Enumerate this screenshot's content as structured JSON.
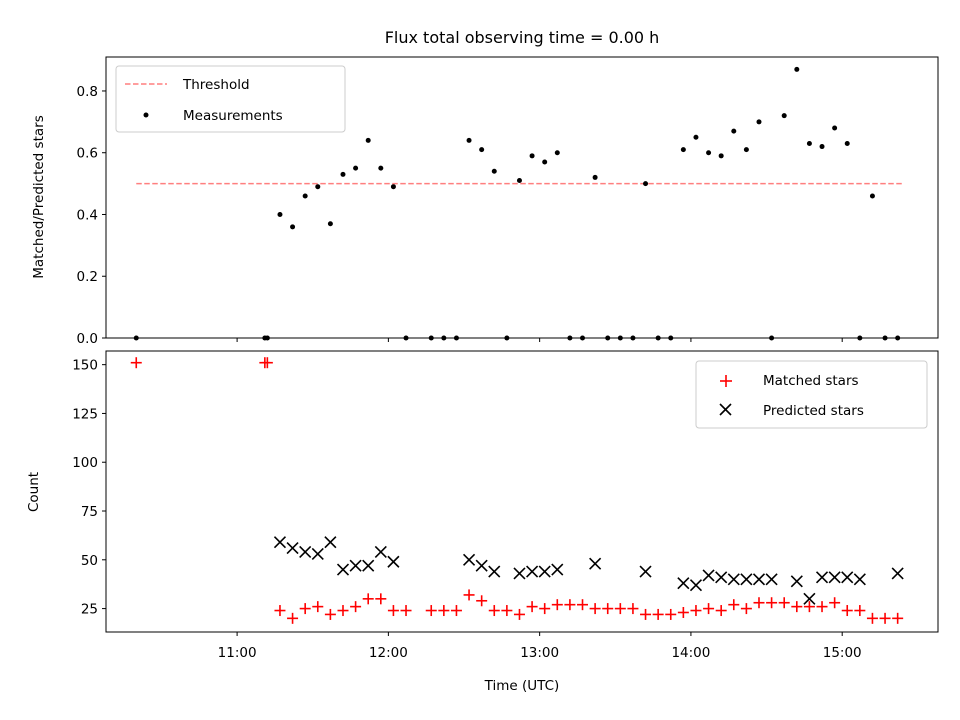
{
  "chart_data": [
    {
      "type": "scatter",
      "title": "Flux total observing time = 0.00 h",
      "xlabel": "",
      "ylabel": "Matched/Predicted stars",
      "xlim": [
        "10:08",
        "15:38"
      ],
      "ylim": [
        0,
        0.91
      ],
      "yticks": [
        0.0,
        0.2,
        0.4,
        0.6,
        0.8
      ],
      "ytick_labels": [
        "0.0",
        "0.2",
        "0.4",
        "0.6",
        "0.8"
      ],
      "grid": false,
      "legend": {
        "placement": "top-left",
        "entries": [
          "Threshold",
          "Measurements"
        ]
      },
      "threshold": {
        "name": "Threshold",
        "value": 0.5,
        "x_start": "10:20",
        "x_end": "15:24",
        "color": "#ff7f7f",
        "style": "dashed"
      },
      "series": [
        {
          "name": "Measurements",
          "color": "#000000",
          "marker": "dot",
          "x": [
            "10:20",
            "11:11",
            "11:12",
            "11:17",
            "11:22",
            "11:27",
            "11:32",
            "11:37",
            "11:42",
            "11:47",
            "11:52",
            "11:57",
            "12:02",
            "12:07",
            "12:17",
            "12:22",
            "12:27",
            "12:32",
            "12:37",
            "12:42",
            "12:47",
            "12:52",
            "12:57",
            "13:02",
            "13:07",
            "13:12",
            "13:17",
            "13:22",
            "13:27",
            "13:32",
            "13:37",
            "13:42",
            "13:47",
            "13:52",
            "13:57",
            "14:02",
            "14:07",
            "14:12",
            "14:17",
            "14:22",
            "14:27",
            "14:32",
            "14:37",
            "14:42",
            "14:47",
            "14:52",
            "14:57",
            "15:02",
            "15:07",
            "15:12",
            "15:17",
            "15:22"
          ],
          "y": [
            0,
            0,
            0,
            0.4,
            0.36,
            0.46,
            0.49,
            0.37,
            0.53,
            0.55,
            0.64,
            0.55,
            0.49,
            0,
            0,
            0,
            0,
            0.64,
            0.61,
            0.54,
            0,
            0.51,
            0.59,
            0.57,
            0.6,
            0,
            0,
            0.52,
            0,
            0,
            0,
            0.5,
            0,
            0,
            0.61,
            0.65,
            0.6,
            0.59,
            0.67,
            0.61,
            0.7,
            0,
            0.72,
            0.87,
            0.63,
            0.62,
            0.68,
            0.63,
            0,
            0.46,
            0,
            0
          ]
        }
      ]
    },
    {
      "type": "scatter",
      "title": "",
      "xlabel": "Time (UTC)",
      "ylabel": "Count",
      "xlim": [
        "10:08",
        "15:38"
      ],
      "ylim": [
        13,
        157
      ],
      "xticks": [
        "11:00",
        "12:00",
        "13:00",
        "14:00",
        "15:00"
      ],
      "yticks": [
        25,
        50,
        75,
        100,
        125,
        150
      ],
      "ytick_labels": [
        "25",
        "50",
        "75",
        "100",
        "125",
        "150"
      ],
      "grid": false,
      "legend": {
        "placement": "top-right",
        "entries": [
          "Matched stars",
          "Predicted stars"
        ]
      },
      "series": [
        {
          "name": "Matched stars",
          "color": "#ff0000",
          "marker": "plus",
          "x": [
            "10:20",
            "11:11",
            "11:12",
            "11:17",
            "11:22",
            "11:27",
            "11:32",
            "11:37",
            "11:42",
            "11:47",
            "11:52",
            "11:57",
            "12:02",
            "12:07",
            "12:17",
            "12:22",
            "12:27",
            "12:32",
            "12:37",
            "12:42",
            "12:47",
            "12:52",
            "12:57",
            "13:02",
            "13:07",
            "13:12",
            "13:17",
            "13:22",
            "13:27",
            "13:32",
            "13:37",
            "13:42",
            "13:47",
            "13:52",
            "13:57",
            "14:02",
            "14:07",
            "14:12",
            "14:17",
            "14:22",
            "14:27",
            "14:32",
            "14:37",
            "14:42",
            "14:47",
            "14:52",
            "14:57",
            "15:02",
            "15:07",
            "15:12",
            "15:17",
            "15:22"
          ],
          "y": [
            151,
            151,
            151,
            24,
            20,
            25,
            26,
            22,
            24,
            26,
            30,
            30,
            24,
            24,
            24,
            24,
            24,
            32,
            29,
            24,
            24,
            22,
            26,
            25,
            27,
            27,
            27,
            25,
            25,
            25,
            25,
            22,
            22,
            22,
            23,
            24,
            25,
            24,
            27,
            25,
            28,
            28,
            28,
            26,
            26,
            26,
            28,
            24,
            24,
            20,
            20,
            20
          ]
        },
        {
          "name": "Predicted stars",
          "color": "#000000",
          "marker": "x",
          "x": [
            "11:17",
            "11:22",
            "11:27",
            "11:32",
            "11:37",
            "11:42",
            "11:47",
            "11:52",
            "11:57",
            "12:02",
            "12:32",
            "12:37",
            "12:42",
            "12:52",
            "12:57",
            "13:02",
            "13:07",
            "13:22",
            "13:42",
            "13:57",
            "14:02",
            "14:07",
            "14:12",
            "14:17",
            "14:22",
            "14:27",
            "14:32",
            "14:42",
            "14:47",
            "14:52",
            "14:57",
            "15:02",
            "15:07",
            "15:22"
          ],
          "y": [
            59,
            56,
            54,
            53,
            59,
            45,
            47,
            47,
            54,
            49,
            50,
            47,
            44,
            43,
            44,
            44,
            45,
            48,
            44,
            38,
            37,
            42,
            41,
            40,
            40,
            40,
            40,
            39,
            30,
            41,
            41,
            41,
            40,
            43
          ]
        }
      ]
    }
  ]
}
